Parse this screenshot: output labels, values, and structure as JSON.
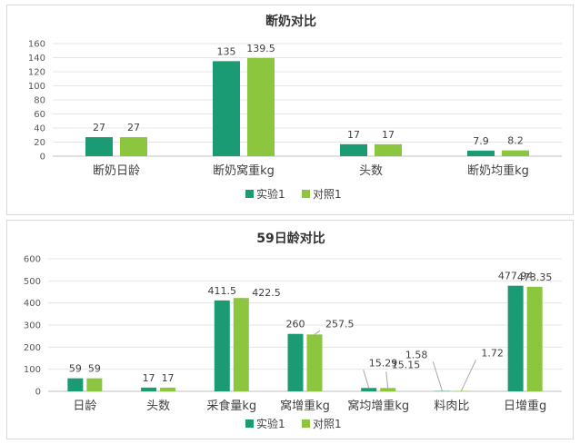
{
  "colors": {
    "series_a": "#1a9b73",
    "series_b": "#8cc63f",
    "grid": "#e5e5e5",
    "axis": "#bfbfbf"
  },
  "chart_data": [
    {
      "type": "bar",
      "title": "断奶对比",
      "categories": [
        "断奶日龄",
        "断奶窝重kg",
        "头数",
        "断奶均重kg"
      ],
      "series": [
        {
          "name": "实验1",
          "values": [
            27,
            135,
            17,
            7.9
          ]
        },
        {
          "name": "对照1",
          "values": [
            27,
            139.5,
            17,
            8.2
          ]
        }
      ],
      "ylim": [
        0,
        160
      ],
      "yticks": [
        "0",
        "20",
        "40",
        "60",
        "80",
        "100",
        "120",
        "140",
        "160"
      ],
      "grid": true,
      "legend": "bottom"
    },
    {
      "type": "bar",
      "title": "59日龄对比",
      "categories": [
        "日龄",
        "头数",
        "采食量kg",
        "窝增重kg",
        "窝均增重kg",
        "料肉比",
        "日增重g"
      ],
      "series": [
        {
          "name": "实验1",
          "values": [
            59,
            17,
            411.5,
            260,
            15.29,
            1.58,
            477.94
          ]
        },
        {
          "name": "对照1",
          "values": [
            59,
            17,
            422.5,
            257.5,
            15.15,
            1.72,
            473.35
          ]
        }
      ],
      "ylim": [
        0,
        600
      ],
      "yticks": [
        "0",
        "100",
        "200",
        "300",
        "400",
        "500",
        "600"
      ],
      "grid": true,
      "legend": "bottom"
    }
  ]
}
